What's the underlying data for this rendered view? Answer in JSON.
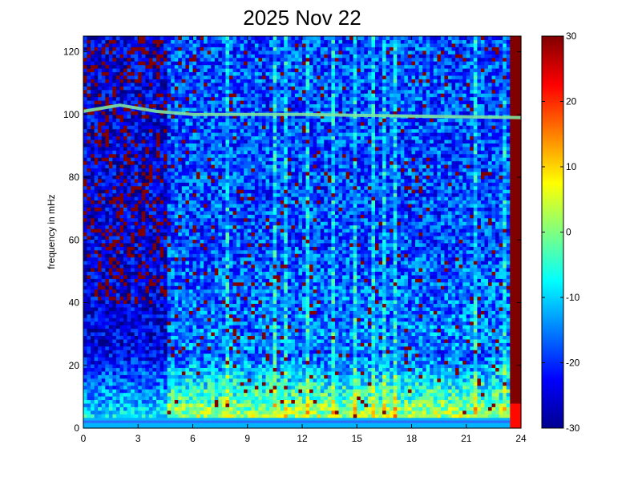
{
  "chart_data": {
    "type": "heatmap",
    "title": "2025 Nov 22",
    "xlabel": "",
    "ylabel": "frequency in mHz",
    "xlim": [
      0,
      24
    ],
    "ylim": [
      0,
      125
    ],
    "x_ticks": [
      0,
      3,
      6,
      9,
      12,
      15,
      18,
      21,
      24
    ],
    "y_ticks": [
      0,
      20,
      40,
      60,
      80,
      100,
      120
    ],
    "colorbar": {
      "colormap": "jet",
      "clim": [
        -30,
        30
      ],
      "ticks": [
        -30,
        -20,
        -10,
        0,
        10,
        20,
        30
      ]
    },
    "features": {
      "persistent_line_mhz": [
        {
          "x": 0,
          "y": 101
        },
        {
          "x": 2,
          "y": 103
        },
        {
          "x": 4,
          "y": 101
        },
        {
          "x": 6,
          "y": 100
        },
        {
          "x": 12,
          "y": 100
        },
        {
          "x": 18,
          "y": 99.5
        },
        {
          "x": 24,
          "y": 99
        }
      ],
      "baseline_line_mhz": 2,
      "quiet_period_hours": [
        0,
        4.6
      ],
      "low_frequency_power_band_mhz": [
        0,
        25
      ]
    }
  }
}
